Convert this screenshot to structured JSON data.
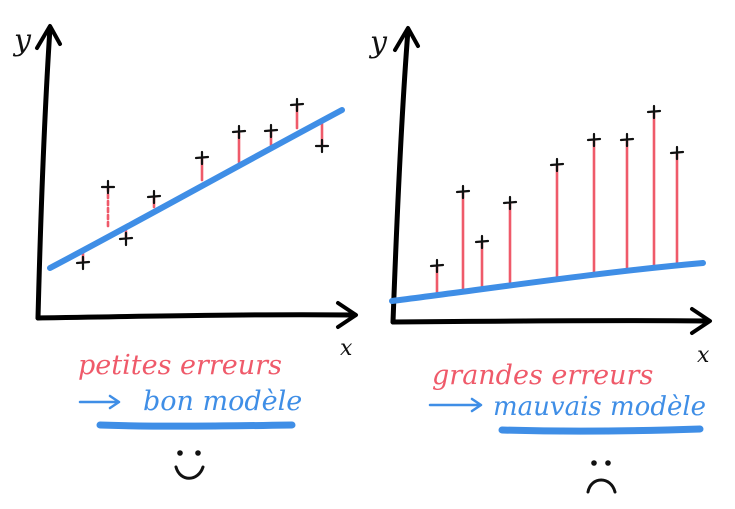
{
  "colors": {
    "error": "#ef5a6a",
    "model": "#3f8ee6",
    "ink": "#111111"
  },
  "left_panel": {
    "y_label": "y",
    "x_label": "x",
    "caption_errors": "petites erreurs",
    "caption_model": "bon modèle",
    "emoji": "happy-face"
  },
  "right_panel": {
    "y_label": "y",
    "x_label": "x",
    "caption_errors": "grandes erreurs",
    "caption_model": "mauvais modèle",
    "emoji": "sad-face"
  }
}
